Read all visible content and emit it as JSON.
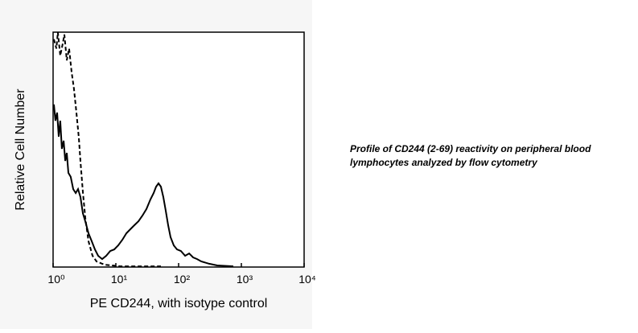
{
  "chart_data": {
    "type": "line",
    "xscale": "log",
    "xlim": [
      1,
      10000
    ],
    "ylim": [
      0,
      100
    ],
    "xticks": [
      {
        "value": 1,
        "label": "10⁰"
      },
      {
        "value": 10,
        "label": "10¹"
      },
      {
        "value": 100,
        "label": "10²"
      },
      {
        "value": 1000,
        "label": "10³"
      },
      {
        "value": 10000,
        "label": "10⁴"
      }
    ],
    "xlabel": "PE CD244, with isotype control",
    "ylabel": "Relative Cell Number",
    "caption": [
      "Profile of CD244 (2-69) reactivity on peripheral blood",
      "lymphocytes analyzed by flow cytometry"
    ],
    "series": [
      {
        "color": "#000000",
        "dashed": false,
        "x": [
          1.03,
          1.09,
          1.16,
          1.23,
          1.3,
          1.38,
          1.47,
          1.56,
          1.65,
          1.75,
          1.91,
          2.09,
          2.29,
          2.5,
          2.73,
          2.98,
          3.26,
          3.66,
          4.12,
          4.64,
          5.22,
          6.05,
          7.02,
          8.13,
          9.42,
          10.9,
          12.7,
          14.7,
          17.0,
          19.7,
          22.9,
          26.5,
          30.7,
          35.6,
          40.1,
          43.8,
          47.8,
          52.2,
          57.1,
          62.4,
          68.1,
          74.5,
          83.8,
          94.2,
          109,
          127,
          147,
          170,
          197,
          229,
          307,
          412,
          745
        ],
        "values": [
          69.2,
          62.3,
          65.8,
          55.5,
          62.3,
          50.3,
          53.8,
          45.2,
          48.6,
          40.1,
          38.4,
          33.2,
          31.5,
          33.2,
          29.8,
          22.9,
          19.5,
          14.4,
          11.0,
          7.5,
          4.8,
          3.4,
          4.8,
          6.8,
          7.5,
          9.2,
          11.6,
          14.4,
          16.1,
          17.8,
          19.5,
          21.9,
          24.7,
          28.8,
          31.5,
          34.2,
          35.6,
          34.2,
          29.8,
          24.0,
          17.8,
          12.7,
          9.2,
          7.5,
          6.8,
          4.8,
          5.8,
          4.1,
          3.4,
          2.4,
          1.4,
          0.7,
          0.3
        ]
      },
      {
        "color": "#000000",
        "dashed": true,
        "x": [
          1.03,
          1.13,
          1.19,
          1.3,
          1.42,
          1.51,
          1.65,
          1.8,
          1.97,
          2.15,
          2.35,
          2.57,
          2.73,
          2.98,
          3.26,
          3.66,
          4.25,
          4.93,
          6.62,
          11.9,
          52.3
        ],
        "values": [
          97,
          93,
          100,
          90,
          95,
          99,
          88,
          93,
          83,
          76,
          66,
          55,
          45,
          32,
          21,
          11,
          4.8,
          2.4,
          1.0,
          0.3,
          0.3
        ]
      }
    ]
  }
}
